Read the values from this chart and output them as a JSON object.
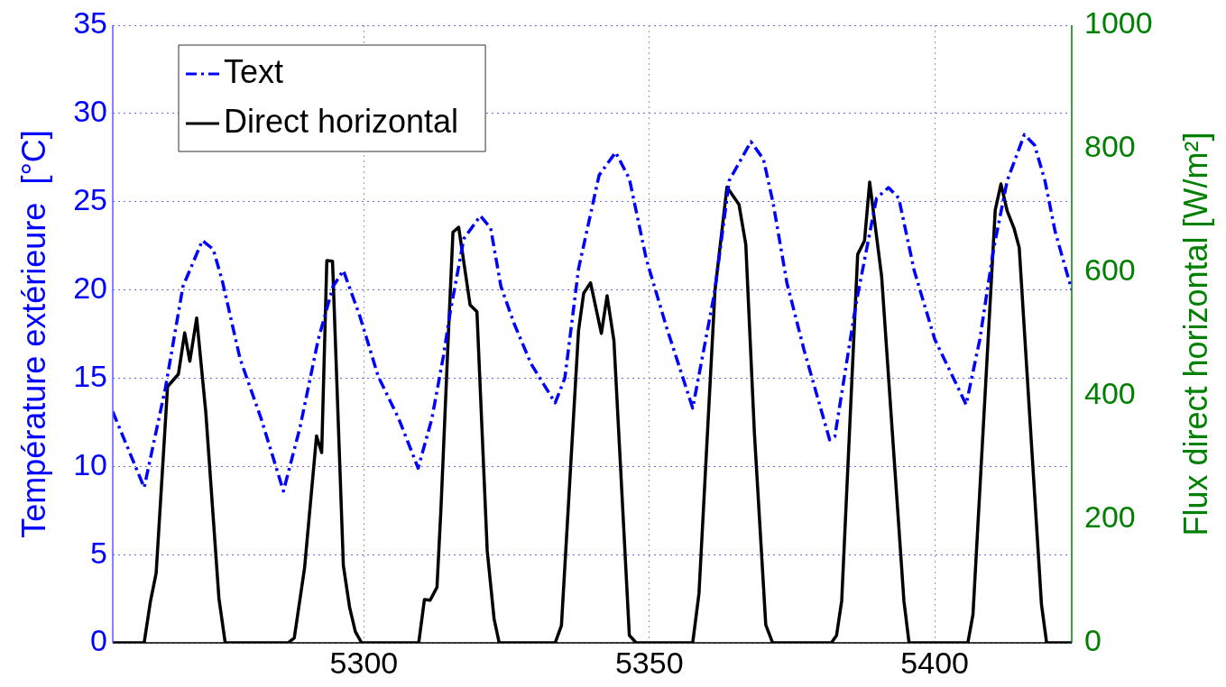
{
  "chart_data": {
    "type": "line",
    "ylabel": "Température extérieure  [°C]",
    "y2label": "Flux direct horizontal [W/m²]",
    "xlim": [
      5256,
      5424
    ],
    "xticks": [
      5300,
      5350,
      5400
    ],
    "ylim": [
      0,
      35
    ],
    "yticks": [
      0,
      5,
      10,
      15,
      20,
      25,
      30,
      35
    ],
    "y2lim": [
      0,
      1000
    ],
    "y2ticks": [
      0,
      200,
      400,
      600,
      800,
      1000
    ],
    "grid": true,
    "legend": "top left",
    "series": [
      {
        "name": "Text",
        "color": "#0000ff",
        "line_style": "dashed",
        "x": [
          5256,
          5261.5,
          5265.2,
          5268.3,
          5271.7,
          5273.6,
          5275.2,
          5278.3,
          5282,
          5285.9,
          5288.8,
          5292,
          5294.6,
          5296.4,
          5299.3,
          5302.5,
          5306.1,
          5309.5,
          5311.9,
          5313.9,
          5315.1,
          5317.5,
          5320.4,
          5322.2,
          5324,
          5326.3,
          5329.3,
          5333.5,
          5335.2,
          5337.6,
          5341.2,
          5344.1,
          5346.5,
          5349.5,
          5353,
          5357.6,
          5361.4,
          5364,
          5367.8,
          5370,
          5371.7,
          5374.1,
          5377.1,
          5381.6,
          5382.5,
          5386.2,
          5389.8,
          5391.9,
          5393.7,
          5396.4,
          5400,
          5405.5,
          5407.9,
          5410.3,
          5412.7,
          5415.7,
          5417.5,
          5419.3,
          5421.1,
          5424
        ],
        "values": [
          13.1,
          8.8,
          14.4,
          20.2,
          22.8,
          22.3,
          20.5,
          16.1,
          12.7,
          8.6,
          12.2,
          17.2,
          20.2,
          21.1,
          18.5,
          15.1,
          12.7,
          9.9,
          12.7,
          16.2,
          18.7,
          22.9,
          24.2,
          23.5,
          20.2,
          18.1,
          15.8,
          13.6,
          15,
          21.2,
          26.5,
          27.8,
          26.3,
          21.7,
          17.9,
          13.3,
          19.8,
          26.2,
          28.4,
          27.4,
          24.9,
          20.4,
          16.6,
          11.5,
          11.7,
          19.2,
          25.2,
          25.8,
          25.2,
          21.1,
          17.2,
          13.5,
          17.2,
          22.3,
          26.2,
          28.8,
          28.2,
          26.2,
          23.3,
          20
        ]
      },
      {
        "name": "Direct horizontal",
        "color": "#000000",
        "line_style": "solid",
        "axis": "y2",
        "x": [
          5256,
          5261.5,
          5262.6,
          5263.6,
          5265.6,
          5267.5,
          5268.6,
          5269.5,
          5270.7,
          5272.3,
          5274.6,
          5275.7,
          5286.7,
          5287.8,
          5289.6,
          5291.7,
          5292.6,
          5293.5,
          5294.5,
          5296.4,
          5297.5,
          5298.5,
          5299.6,
          5309.6,
          5310.6,
          5311.6,
          5312.8,
          5313.5,
          5314.8,
          5315.6,
          5316.6,
          5318.6,
          5319.8,
          5321.6,
          5322.8,
          5323.7,
          5333.5,
          5334.6,
          5337.6,
          5338.5,
          5339.7,
          5341.6,
          5342.6,
          5343.8,
          5346.5,
          5347.7,
          5357.6,
          5358.7,
          5361.5,
          5363.6,
          5365.7,
          5366.9,
          5368.4,
          5370.4,
          5371.6,
          5381.9,
          5382.8,
          5383.7,
          5386.5,
          5387.7,
          5388.6,
          5390.7,
          5394.6,
          5395.5,
          5405.8,
          5406.7,
          5410.6,
          5411.6,
          5412.7,
          5413.9,
          5414.8,
          5418.7,
          5419.6,
          5424
        ],
        "values": [
          0,
          0,
          67,
          113,
          415,
          435,
          502,
          456,
          526,
          373,
          72,
          0,
          0,
          8,
          121,
          335,
          308,
          619,
          618,
          125,
          57,
          18,
          0,
          0,
          70,
          69,
          90,
          218,
          500,
          665,
          673,
          547,
          536,
          149,
          39,
          0,
          0,
          28,
          506,
          566,
          583,
          501,
          562,
          489,
          12,
          0,
          0,
          80,
          570,
          738,
          710,
          645,
          341,
          29,
          0,
          0,
          12,
          68,
          629,
          651,
          746,
          593,
          68,
          0,
          0,
          46,
          701,
          743,
          699,
          671,
          640,
          62,
          0,
          0
        ]
      }
    ]
  }
}
